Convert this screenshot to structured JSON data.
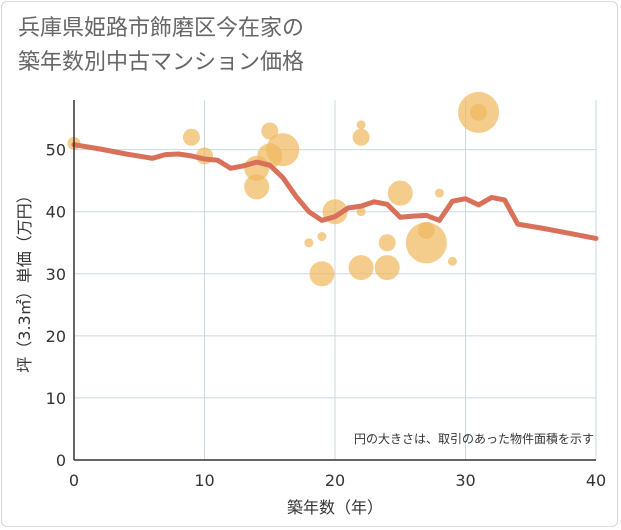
{
  "title": "兵庫県姫路市飾磨区今在家の\n築年数別中古マンション価格",
  "chart_data": {
    "type": "scatter",
    "title": "兵庫県姫路市飾磨区今在家の築年数別中古マンション価格",
    "xlabel": "築年数（年）",
    "ylabel": "坪（3.3㎡）単価（万円）",
    "xlim": [
      0,
      40
    ],
    "ylim": [
      0,
      58
    ],
    "x_ticks": [
      0,
      10,
      20,
      30,
      40
    ],
    "y_ticks": [
      0,
      10,
      20,
      30,
      40,
      50
    ],
    "grid": true,
    "note": "円の大きさは、取引のあった物件面積を示す",
    "colors": {
      "bubble": "#f0b860",
      "line": "#d9705a",
      "grid": "#c8d8e6",
      "axis": "#333333"
    },
    "bubbles": [
      {
        "x": 0,
        "y": 51,
        "size": 2
      },
      {
        "x": 9,
        "y": 52,
        "size": 3
      },
      {
        "x": 10,
        "y": 49,
        "size": 3
      },
      {
        "x": 14,
        "y": 47,
        "size": 5
      },
      {
        "x": 14,
        "y": 44,
        "size": 5
      },
      {
        "x": 15,
        "y": 53,
        "size": 3
      },
      {
        "x": 15,
        "y": 49,
        "size": 5
      },
      {
        "x": 16,
        "y": 50,
        "size": 7
      },
      {
        "x": 18,
        "y": 35,
        "size": 1
      },
      {
        "x": 19,
        "y": 36,
        "size": 1
      },
      {
        "x": 19,
        "y": 30,
        "size": 5
      },
      {
        "x": 20,
        "y": 40,
        "size": 5
      },
      {
        "x": 22,
        "y": 54,
        "size": 1
      },
      {
        "x": 22,
        "y": 52,
        "size": 3
      },
      {
        "x": 22,
        "y": 40,
        "size": 1
      },
      {
        "x": 22,
        "y": 31,
        "size": 5
      },
      {
        "x": 24,
        "y": 35,
        "size": 3
      },
      {
        "x": 24,
        "y": 31,
        "size": 5
      },
      {
        "x": 25,
        "y": 43,
        "size": 5
      },
      {
        "x": 27,
        "y": 37,
        "size": 3
      },
      {
        "x": 27,
        "y": 35,
        "size": 9
      },
      {
        "x": 28,
        "y": 43,
        "size": 1
      },
      {
        "x": 29,
        "y": 32,
        "size": 1
      },
      {
        "x": 31,
        "y": 56,
        "size": 9
      },
      {
        "x": 31,
        "y": 56,
        "size": 3
      }
    ],
    "trend": {
      "x": [
        0,
        2,
        4,
        6,
        7,
        8,
        9,
        10,
        11,
        12,
        13,
        14,
        15,
        16,
        17,
        18,
        19,
        20,
        21,
        22,
        23,
        24,
        25,
        26,
        27,
        28,
        29,
        30,
        31,
        32,
        33,
        34,
        36,
        38,
        40
      ],
      "y": [
        50.8,
        50.1,
        49.3,
        48.6,
        49.2,
        49.3,
        49.0,
        48.5,
        48.3,
        47.0,
        47.4,
        48.0,
        47.5,
        45.5,
        42.5,
        40.0,
        38.6,
        39.2,
        40.6,
        40.9,
        41.6,
        41.2,
        39.1,
        39.3,
        39.4,
        38.6,
        41.7,
        42.1,
        41.1,
        42.3,
        41.9,
        38.0,
        37.3,
        36.5,
        35.7
      ]
    }
  }
}
